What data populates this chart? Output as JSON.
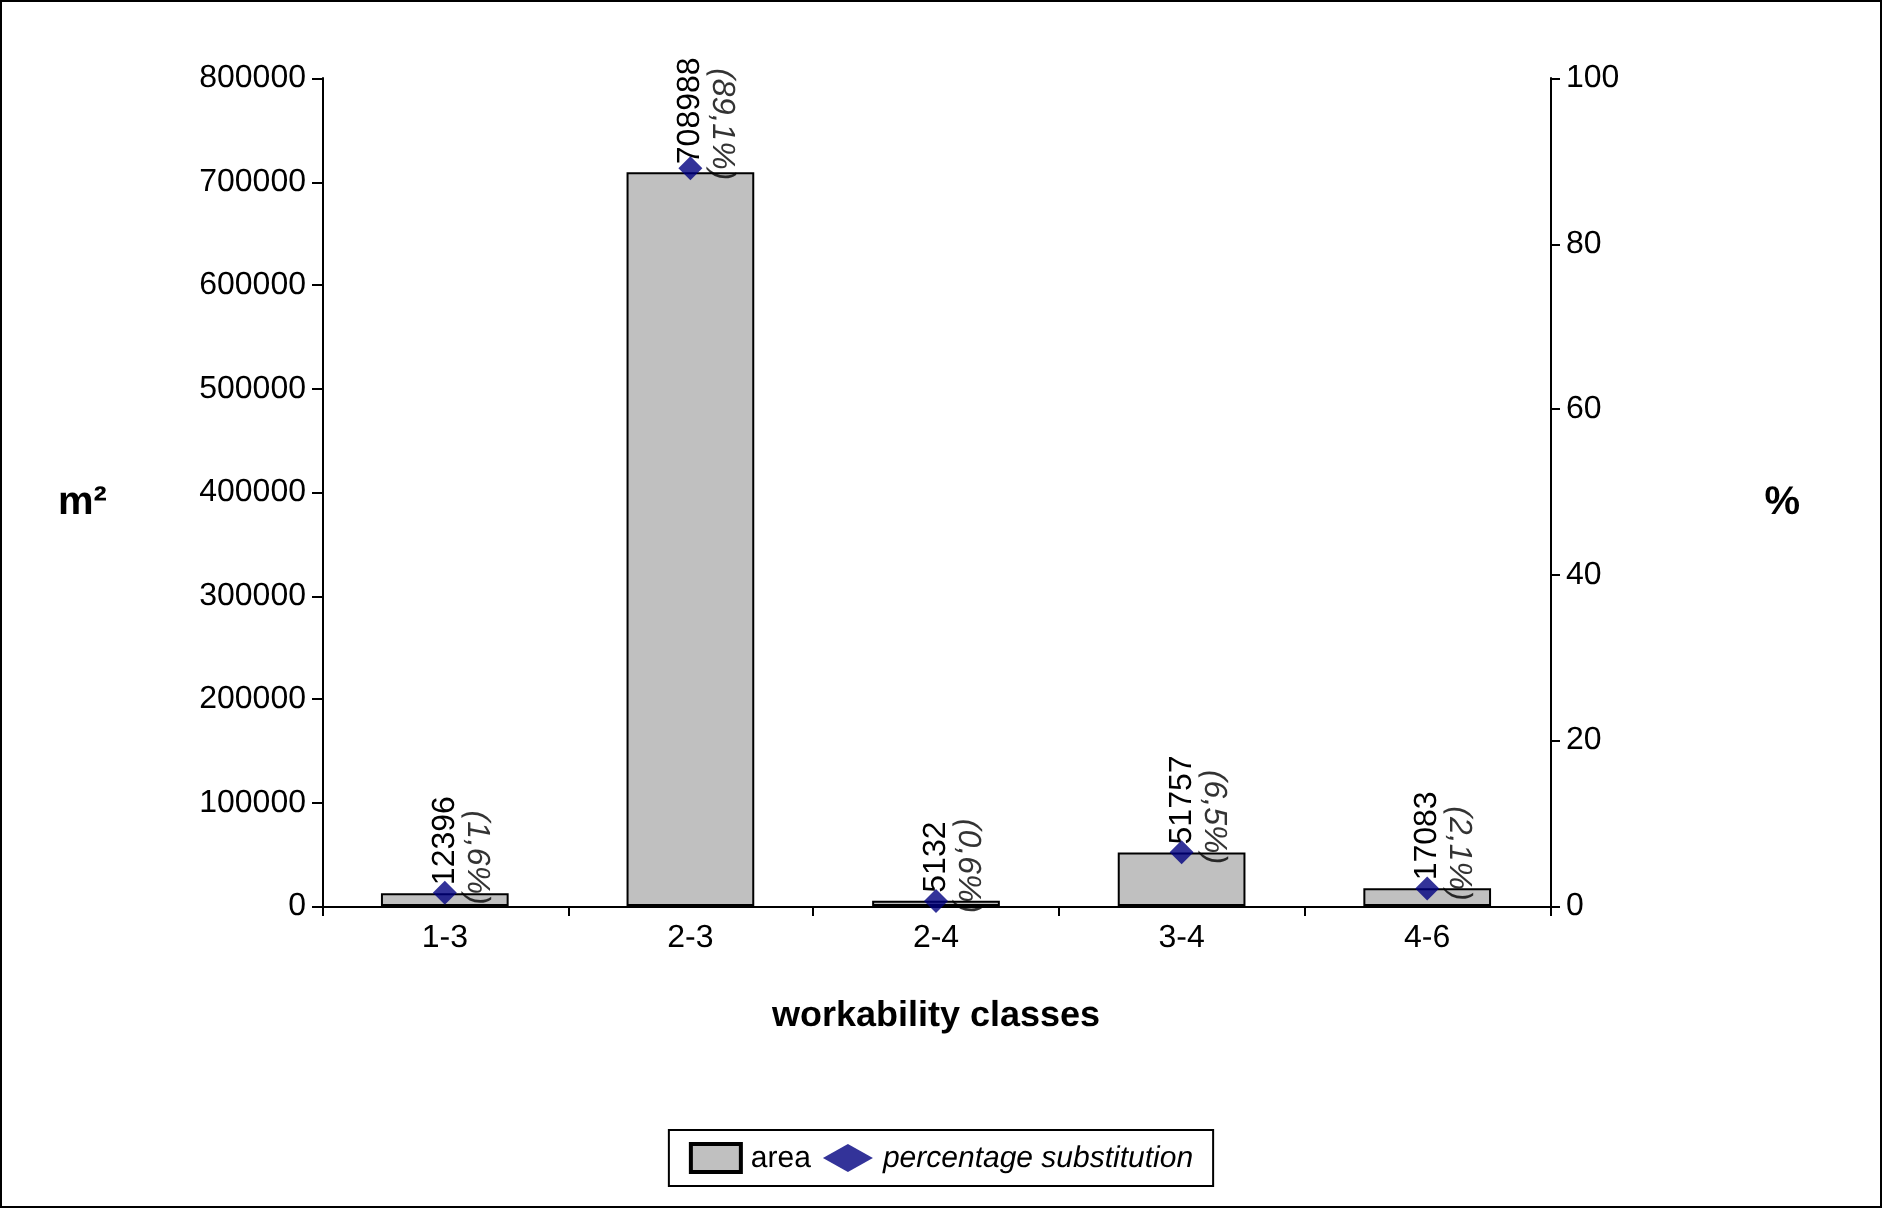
{
  "chart_data": {
    "type": "bar",
    "xlabel": "workability classes",
    "ylabel": "m²",
    "y2label": "%",
    "categories": [
      "1-3",
      "2-3",
      "2-4",
      "3-4",
      "4-6"
    ],
    "series": [
      {
        "name": "area",
        "color": "#c0c0c0",
        "values": [
          12396,
          708988,
          5132,
          51757,
          17083
        ],
        "value_labels": [
          "12396",
          "708988",
          "5132",
          "51757",
          "17083"
        ]
      },
      {
        "name": "percentage substitution",
        "type": "scatter",
        "axis": "y2",
        "marker": "diamond",
        "color": "#000080",
        "values": [
          1.6,
          89.1,
          0.6,
          6.5,
          2.1
        ],
        "value_labels": [
          "(1,6%)",
          "(89,1%)",
          "(0,6%)",
          "(6,5%)",
          "(2,1%)"
        ]
      }
    ],
    "ylim": [
      0,
      800000
    ],
    "yticks": [
      0,
      100000,
      200000,
      300000,
      400000,
      500000,
      600000,
      700000,
      800000
    ],
    "y2lim": [
      0,
      100
    ],
    "y2ticks": [
      0,
      20,
      40,
      60,
      80,
      100
    ],
    "grid": false,
    "legend": "bottom"
  }
}
